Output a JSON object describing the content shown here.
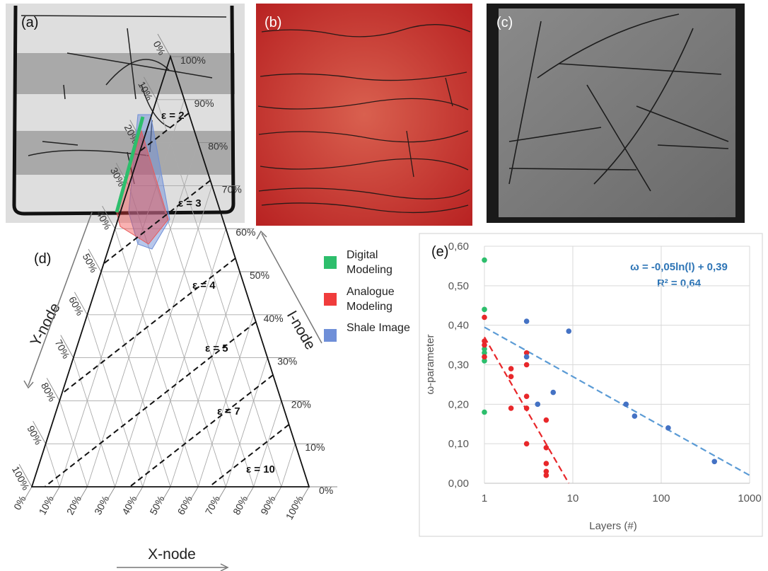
{
  "panels": {
    "a": "(a)",
    "b": "(b)",
    "c": "(c)"
  },
  "ternary": {
    "label": "(d)",
    "y_axis": "Y-node",
    "i_axis": "I-node",
    "x_axis": "X-node",
    "x_ticks": [
      {
        "value": 0,
        "label": "0%"
      },
      {
        "value": 10,
        "label": "10%"
      },
      {
        "value": 20,
        "label": "20%"
      },
      {
        "value": 30,
        "label": "30%"
      },
      {
        "value": 40,
        "label": "40%"
      },
      {
        "value": 50,
        "label": "50%"
      },
      {
        "value": 60,
        "label": "60%"
      },
      {
        "value": 70,
        "label": "70%"
      },
      {
        "value": 80,
        "label": "80%"
      },
      {
        "value": 90,
        "label": "90%"
      },
      {
        "value": 100,
        "label": "100%"
      }
    ],
    "y_ticks": [
      {
        "value": 0,
        "label": "0%"
      },
      {
        "value": 10,
        "label": "10%"
      },
      {
        "value": 20,
        "label": "20%"
      },
      {
        "value": 30,
        "label": "30%"
      },
      {
        "value": 40,
        "label": "40%"
      },
      {
        "value": 50,
        "label": "50%"
      },
      {
        "value": 60,
        "label": "60%"
      },
      {
        "value": 70,
        "label": "70%"
      },
      {
        "value": 80,
        "label": "80%"
      },
      {
        "value": 90,
        "label": "90%"
      },
      {
        "value": 100,
        "label": "100%"
      }
    ],
    "i_ticks": [
      {
        "value": 0,
        "label": "0%"
      },
      {
        "value": 10,
        "label": "10%"
      },
      {
        "value": 20,
        "label": "20%"
      },
      {
        "value": 30,
        "label": "30%"
      },
      {
        "value": 40,
        "label": "40%"
      },
      {
        "value": 50,
        "label": "50%"
      },
      {
        "value": 60,
        "label": "60%"
      },
      {
        "value": 70,
        "label": "70%"
      },
      {
        "value": 80,
        "label": "80%"
      },
      {
        "value": 90,
        "label": "90%"
      },
      {
        "value": 100,
        "label": "100%"
      }
    ],
    "epsilon_labels": [
      "ε = 2",
      "ε = 3",
      "ε = 4",
      "ε = 5",
      "ε = 7",
      "ε = 10"
    ],
    "legend": [
      {
        "name": "Digital Modeling",
        "color": "#2dbe6c"
      },
      {
        "name": "Analogue Modeling",
        "color": "#f03c3c"
      },
      {
        "name": "Shale Image",
        "color": "#6f8fd8"
      }
    ]
  },
  "chart_data": {
    "type": "scatter",
    "label": "(e)",
    "x_label": "Layers (#)",
    "y_label": "ω-parameter",
    "annotations": [
      "ω = -0,05ln(l) + 0,39",
      "R² = 0,64"
    ],
    "xscale": "log",
    "xlim": [
      1,
      1000
    ],
    "xticks": [
      1,
      10,
      100,
      1000
    ],
    "ylim": [
      0,
      0.6
    ],
    "yticks": [
      {
        "value": 0,
        "label": "0,00"
      },
      {
        "value": 0.1,
        "label": "0,10"
      },
      {
        "value": 0.2,
        "label": "0,20"
      },
      {
        "value": 0.3,
        "label": "0,30"
      },
      {
        "value": 0.4,
        "label": "0,40"
      },
      {
        "value": 0.5,
        "label": "0,50"
      },
      {
        "value": 0.6,
        "label": "0,60"
      }
    ],
    "grid": true,
    "series": [
      {
        "color": "#2dbe6c",
        "x": [
          1,
          1,
          1,
          1,
          1,
          1
        ],
        "values": [
          0.565,
          0.44,
          0.34,
          0.33,
          0.31,
          0.18
        ]
      },
      {
        "color": "#e8272a",
        "x": [
          1,
          1,
          1,
          1,
          2,
          2,
          2,
          3,
          3,
          3,
          3,
          3,
          5,
          5,
          5,
          5,
          5
        ],
        "values": [
          0.42,
          0.36,
          0.35,
          0.32,
          0.29,
          0.27,
          0.19,
          0.33,
          0.3,
          0.22,
          0.19,
          0.1,
          0.16,
          0.09,
          0.05,
          0.03,
          0.02
        ]
      },
      {
        "color": "#4472c4",
        "x": [
          3,
          3,
          4,
          6,
          9,
          40,
          50,
          120,
          400
        ],
        "values": [
          0.41,
          0.32,
          0.2,
          0.23,
          0.385,
          0.2,
          0.17,
          0.14,
          0.055
        ]
      }
    ],
    "trendlines": [
      {
        "color": "#e8272a",
        "x": [
          1,
          9
        ],
        "values": [
          0.37,
          0
        ]
      },
      {
        "color": "#5b9bd5",
        "x": [
          1,
          1000
        ],
        "values": [
          0.395,
          0.02
        ]
      }
    ]
  }
}
